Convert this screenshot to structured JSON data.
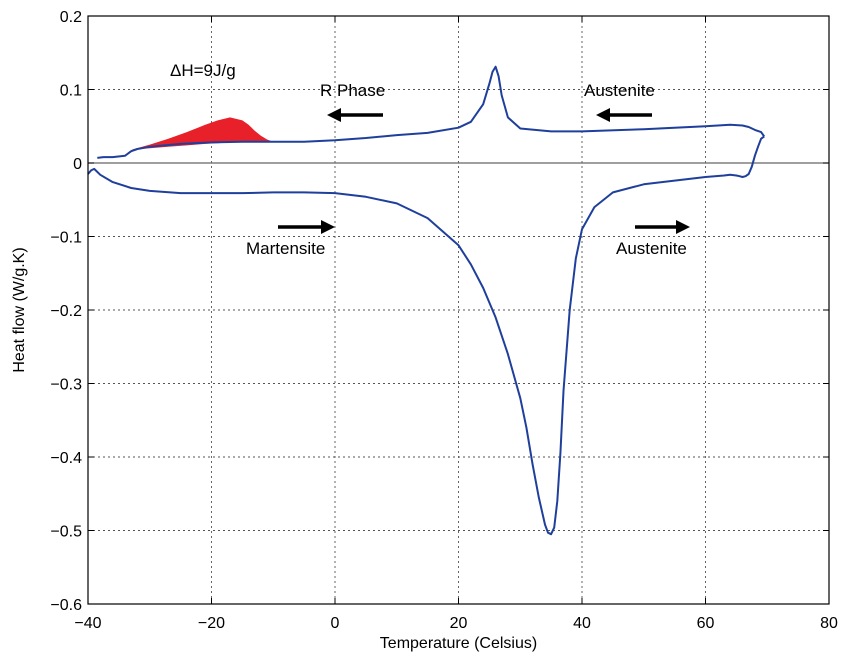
{
  "chart_data": {
    "type": "line",
    "title": "",
    "xlabel": "Temperature (Celsius)",
    "ylabel": "Heat flow (W/g.K)",
    "xlim": [
      -40,
      80
    ],
    "ylim": [
      -0.6,
      0.2
    ],
    "x_ticks": [
      -40,
      -20,
      0,
      20,
      40,
      60,
      80
    ],
    "x_tick_labels": [
      "−40",
      "−20",
      "0",
      "20",
      "40",
      "60",
      "80"
    ],
    "y_ticks": [
      0.2,
      0.1,
      0,
      -0.1,
      -0.2,
      -0.3,
      -0.4,
      -0.5,
      -0.6
    ],
    "y_tick_labels": [
      "0.2",
      "0.1",
      "0",
      "−0.1",
      "−0.2",
      "−0.3",
      "−0.4",
      "−0.5",
      "−0.6"
    ],
    "grid": true,
    "line_color": "#1f3f9c",
    "fill_color": "#e8202a",
    "zero_line": true,
    "series": [
      {
        "x": [
          -38.5,
          -37.5,
          -36,
          -34,
          -33,
          -32,
          -30,
          -25,
          -20,
          -15,
          -12,
          -10,
          -5,
          0,
          5,
          10,
          15,
          20,
          22,
          24,
          25,
          25.5,
          26,
          26.5,
          27,
          28,
          30,
          35,
          40,
          50,
          60,
          64,
          66,
          67,
          68,
          69,
          69.5
        ],
        "y": [
          0.007,
          0.008,
          0.008,
          0.01,
          0.016,
          0.019,
          0.022,
          0.026,
          0.028,
          0.029,
          0.029,
          0.029,
          0.029,
          0.031,
          0.034,
          0.038,
          0.041,
          0.048,
          0.056,
          0.08,
          0.108,
          0.124,
          0.131,
          0.118,
          0.092,
          0.062,
          0.047,
          0.043,
          0.043,
          0.046,
          0.05,
          0.052,
          0.051,
          0.049,
          0.045,
          0.042,
          0.036
        ]
      },
      {
        "x": [
          -40,
          -39.5,
          -39,
          -38,
          -36,
          -33,
          -30,
          -25,
          -20,
          -15,
          -10,
          -5,
          0,
          5,
          10,
          15,
          20,
          22,
          24,
          26,
          28,
          30,
          31,
          32,
          33,
          34,
          34.5,
          35,
          35.5,
          36,
          36.5,
          37,
          38,
          39,
          40,
          42,
          45,
          50,
          55,
          60,
          63,
          64,
          65,
          65.5,
          66,
          66.5,
          67,
          67.5,
          68,
          68.5,
          69,
          69.5
        ],
        "y": [
          -0.015,
          -0.01,
          -0.008,
          -0.016,
          -0.026,
          -0.034,
          -0.038,
          -0.041,
          -0.041,
          -0.041,
          -0.04,
          -0.04,
          -0.041,
          -0.046,
          -0.055,
          -0.075,
          -0.112,
          -0.138,
          -0.17,
          -0.21,
          -0.26,
          -0.32,
          -0.36,
          -0.41,
          -0.455,
          -0.492,
          -0.503,
          -0.505,
          -0.496,
          -0.46,
          -0.395,
          -0.31,
          -0.2,
          -0.13,
          -0.09,
          -0.06,
          -0.04,
          -0.029,
          -0.024,
          -0.019,
          -0.017,
          -0.016,
          -0.017,
          -0.018,
          -0.019,
          -0.018,
          -0.015,
          -0.005,
          0.01,
          0.022,
          0.033,
          0.036
        ]
      }
    ],
    "filled_region": {
      "x": [
        -33,
        -30,
        -27,
        -24,
        -21,
        -19,
        -17,
        -15,
        -14,
        -13,
        -12,
        -11,
        -10
      ],
      "y_top": [
        0.018,
        0.025,
        0.033,
        0.042,
        0.052,
        0.058,
        0.062,
        0.058,
        0.052,
        0.044,
        0.037,
        0.032,
        0.029
      ],
      "y_base": [
        0.018,
        0.02,
        0.022,
        0.024,
        0.026,
        0.027,
        0.028,
        0.028,
        0.028,
        0.029,
        0.029,
        0.029,
        0.029
      ]
    },
    "annotations": {
      "delta_h": "ΔH=9J/g",
      "r_phase": "R Phase",
      "austenite_top": "Austenite",
      "martensite": "Martensite",
      "austenite_bottom": "Austenite"
    },
    "arrow_color": "#000000"
  }
}
